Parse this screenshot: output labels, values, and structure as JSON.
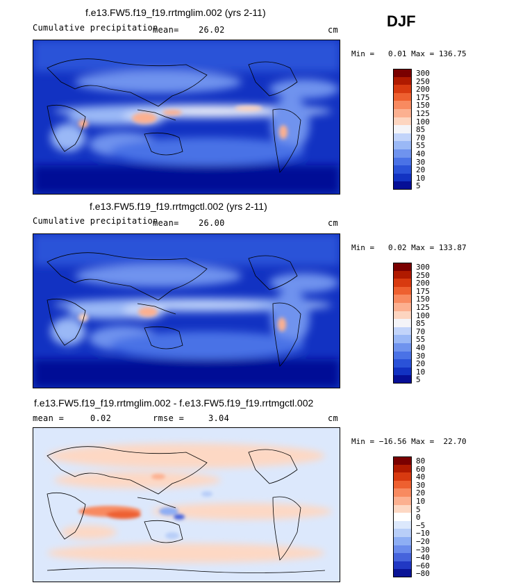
{
  "season": "DJF",
  "panels": [
    {
      "title": "f.e13.FW5.f19_f19.rrtmglim.002 (yrs 2-11)",
      "left_label": "Cumulative precipitation",
      "mean_label": "mean=",
      "mean_value": "26.02",
      "units": "cm",
      "min_label": "Min =",
      "min_value": "0.01",
      "max_label": "Max =",
      "max_value": "136.75",
      "palette": "precip",
      "levels": [
        "300",
        "250",
        "200",
        "175",
        "150",
        "125",
        "100",
        "85",
        "70",
        "55",
        "40",
        "30",
        "20",
        "10",
        "5"
      ]
    },
    {
      "title": "f.e13.FW5.f19_f19.rrtmgctl.002 (yrs 2-11)",
      "left_label": "Cumulative precipitation",
      "mean_label": "mean=",
      "mean_value": "26.00",
      "units": "cm",
      "min_label": "Min =",
      "min_value": "0.02",
      "max_label": "Max =",
      "max_value": "133.87",
      "palette": "precip",
      "levels": [
        "300",
        "250",
        "200",
        "175",
        "150",
        "125",
        "100",
        "85",
        "70",
        "55",
        "40",
        "30",
        "20",
        "10",
        "5"
      ]
    },
    {
      "title": "f.e13.FW5.f19_f19.rrtmglim.002 - f.e13.FW5.f19_f19.rrtmgctl.002",
      "left_label": "mean =",
      "mean_label": "",
      "mean_value": "0.02",
      "rmse_label": "rmse =",
      "rmse_value": "3.04",
      "units": "cm",
      "min_label": "Min =",
      "min_value": "−16.56",
      "max_label": "Max =",
      "max_value": "22.70",
      "palette": "diff",
      "levels": [
        "80",
        "60",
        "40",
        "30",
        "20",
        "10",
        "5",
        "0",
        "−5",
        "−10",
        "−20",
        "−30",
        "−40",
        "−60",
        "−80"
      ]
    }
  ],
  "colors": {
    "precip": [
      "#7a0000",
      "#b01a00",
      "#d83a10",
      "#ee6030",
      "#f88a60",
      "#fcb090",
      "#fdd5c0",
      "#f4f4f8",
      "#c2d4fa",
      "#9ab8f6",
      "#6f93ee",
      "#4a72e6",
      "#2a52d8",
      "#1232c2",
      "#060f96"
    ],
    "diff": [
      "#7a0000",
      "#b01a00",
      "#d83a10",
      "#ee6030",
      "#f88a60",
      "#fcb090",
      "#fdd8c4",
      "#ffffff",
      "#dce8fc",
      "#b8cef8",
      "#8eaef4",
      "#6b8cec",
      "#4664dc",
      "#2138c4",
      "#0a1496"
    ],
    "ocean_base": "#1432c6",
    "land_line": "#000000"
  }
}
